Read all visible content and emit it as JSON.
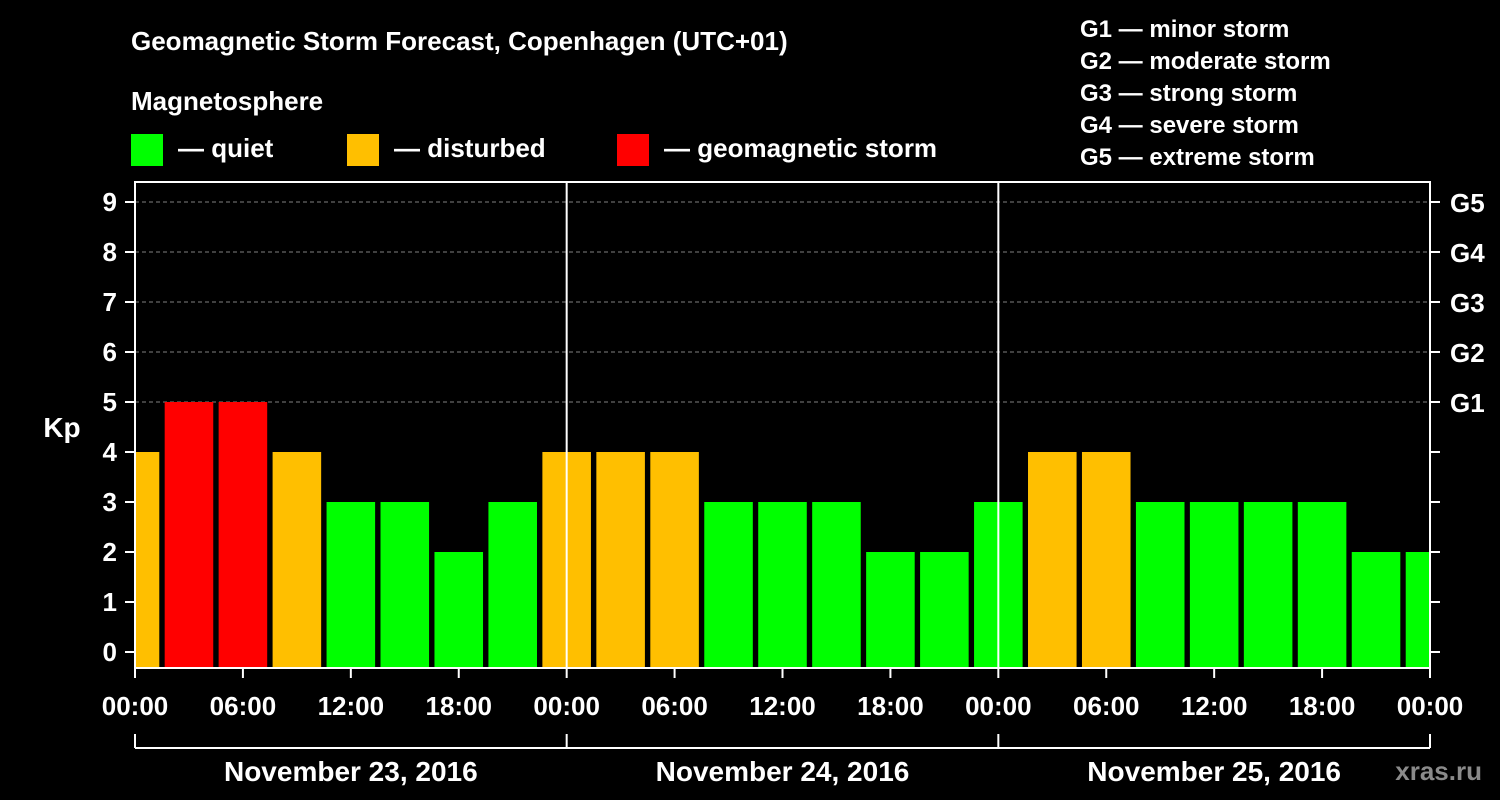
{
  "chart_data": {
    "type": "bar",
    "title": "Geomagnetic Storm Forecast, Copenhagen (UTC+01)",
    "ylabel": "Kp",
    "ylim": [
      0,
      9
    ],
    "yticks": [
      "0",
      "1",
      "2",
      "3",
      "4",
      "5",
      "6",
      "7",
      "8",
      "9"
    ],
    "right_axis": [
      {
        "label": "G1",
        "kp": 5
      },
      {
        "label": "G2",
        "kp": 6
      },
      {
        "label": "G3",
        "kp": 7
      },
      {
        "label": "G4",
        "kp": 8
      },
      {
        "label": "G5",
        "kp": 9
      }
    ],
    "legend_title": "Magnetosphere",
    "legend": [
      {
        "key": "quiet",
        "label": "— quiet",
        "color": "#00ff00"
      },
      {
        "key": "disturbed",
        "label": "— disturbed",
        "color": "#ffbf00"
      },
      {
        "key": "storm",
        "label": "— geomagnetic storm",
        "color": "#ff0000"
      }
    ],
    "storm_scale": [
      "G1 — minor storm",
      "G2 — moderate storm",
      "G3 — strong storm",
      "G4 — severe storm",
      "G5 — extreme storm"
    ],
    "x_range_hours": [
      0,
      72
    ],
    "bar_width_hours": 2.7,
    "bar_note": "the first bar (Nov 23, centered 00:00) is clipped by the left axis",
    "bars": [
      {
        "center_hour": 0,
        "kp": 4,
        "level": "disturbed"
      },
      {
        "center_hour": 3,
        "kp": 5,
        "level": "storm"
      },
      {
        "center_hour": 6,
        "kp": 5,
        "level": "storm"
      },
      {
        "center_hour": 9,
        "kp": 4,
        "level": "disturbed"
      },
      {
        "center_hour": 12,
        "kp": 3,
        "level": "quiet"
      },
      {
        "center_hour": 15,
        "kp": 3,
        "level": "quiet"
      },
      {
        "center_hour": 18,
        "kp": 2,
        "level": "quiet"
      },
      {
        "center_hour": 21,
        "kp": 3,
        "level": "quiet"
      },
      {
        "center_hour": 24,
        "kp": 4,
        "level": "disturbed"
      },
      {
        "center_hour": 27,
        "kp": 4,
        "level": "disturbed"
      },
      {
        "center_hour": 30,
        "kp": 4,
        "level": "disturbed"
      },
      {
        "center_hour": 33,
        "kp": 3,
        "level": "quiet"
      },
      {
        "center_hour": 36,
        "kp": 3,
        "level": "quiet"
      },
      {
        "center_hour": 39,
        "kp": 3,
        "level": "quiet"
      },
      {
        "center_hour": 42,
        "kp": 2,
        "level": "quiet"
      },
      {
        "center_hour": 45,
        "kp": 2,
        "level": "quiet"
      },
      {
        "center_hour": 48,
        "kp": 3,
        "level": "quiet"
      },
      {
        "center_hour": 51,
        "kp": 4,
        "level": "disturbed"
      },
      {
        "center_hour": 54,
        "kp": 4,
        "level": "disturbed"
      },
      {
        "center_hour": 57,
        "kp": 3,
        "level": "quiet"
      },
      {
        "center_hour": 60,
        "kp": 3,
        "level": "quiet"
      },
      {
        "center_hour": 63,
        "kp": 3,
        "level": "quiet"
      },
      {
        "center_hour": 66,
        "kp": 3,
        "level": "quiet"
      },
      {
        "center_hour": 69,
        "kp": 2,
        "level": "quiet"
      },
      {
        "center_hour": 72,
        "kp": 2,
        "level": "quiet"
      }
    ],
    "xticks": [
      {
        "hour": 0,
        "label": "00:00"
      },
      {
        "hour": 6,
        "label": "06:00"
      },
      {
        "hour": 12,
        "label": "12:00"
      },
      {
        "hour": 18,
        "label": "18:00"
      },
      {
        "hour": 24,
        "label": "00:00"
      },
      {
        "hour": 30,
        "label": "06:00"
      },
      {
        "hour": 36,
        "label": "12:00"
      },
      {
        "hour": 42,
        "label": "18:00"
      },
      {
        "hour": 48,
        "label": "00:00"
      },
      {
        "hour": 54,
        "label": "06:00"
      },
      {
        "hour": 60,
        "label": "12:00"
      },
      {
        "hour": 66,
        "label": "18:00"
      },
      {
        "hour": 72,
        "label": "00:00"
      }
    ],
    "days": [
      {
        "label": "November 23, 2016",
        "start_hour": 0
      },
      {
        "label": "November 24, 2016",
        "start_hour": 24
      },
      {
        "label": "November 25, 2016",
        "start_hour": 48
      }
    ]
  },
  "watermark": "xras.ru"
}
